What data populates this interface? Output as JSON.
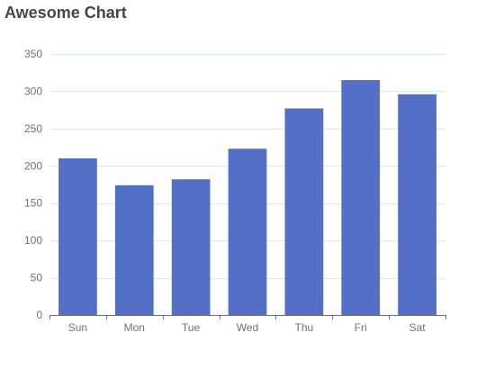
{
  "chart_data": {
    "type": "bar",
    "title": "Awesome Chart",
    "categories": [
      "Sun",
      "Mon",
      "Tue",
      "Wed",
      "Thu",
      "Fri",
      "Sat"
    ],
    "series": [
      {
        "values": [
          210,
          174,
          182,
          223,
          277,
          315,
          296
        ]
      }
    ],
    "xlabel": "",
    "ylabel": "",
    "ylim": [
      0,
      350
    ],
    "yticks": [
      0,
      50,
      100,
      150,
      200,
      250,
      300,
      350
    ],
    "grid": true,
    "legend": "none",
    "bar_color": "#5470c6"
  }
}
